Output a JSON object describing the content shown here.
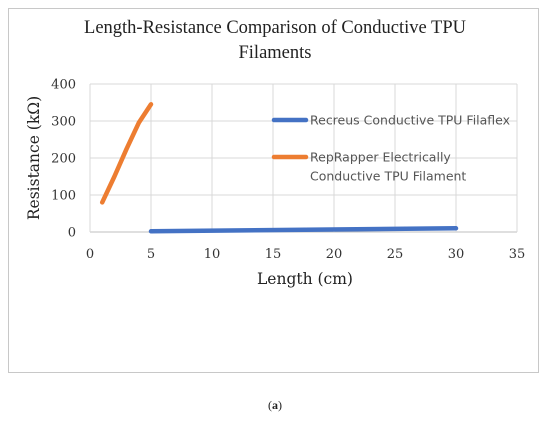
{
  "caption": "(a)",
  "chart_data": {
    "type": "line",
    "title_lines": [
      "Length-Resistance Comparison of Conductive TPU",
      "Filaments"
    ],
    "xlabel": "Length (cm)",
    "ylabel": "Resistance (kΩ)",
    "xlim": [
      0,
      35
    ],
    "ylim": [
      0,
      400
    ],
    "xticks": [
      0,
      5,
      10,
      15,
      20,
      25,
      30,
      35
    ],
    "yticks": [
      0,
      100,
      200,
      300,
      400
    ],
    "grid": true,
    "legend_position": "right",
    "series": [
      {
        "name": "Recreus Conductive TPU Filaflex",
        "name_lines": [
          "Recreus Conductive TPU Filaflex"
        ],
        "color": "#4472C4",
        "x": [
          5,
          30
        ],
        "y": [
          2,
          10
        ]
      },
      {
        "name": "RepRapper Electrically Conductive TPU Filament",
        "name_lines": [
          "RepRapper Electrically",
          "Conductive TPU Filament"
        ],
        "color": "#ED7D31",
        "x": [
          1,
          2,
          3,
          4,
          5
        ],
        "y": [
          80,
          150,
          225,
          295,
          345
        ]
      }
    ]
  }
}
